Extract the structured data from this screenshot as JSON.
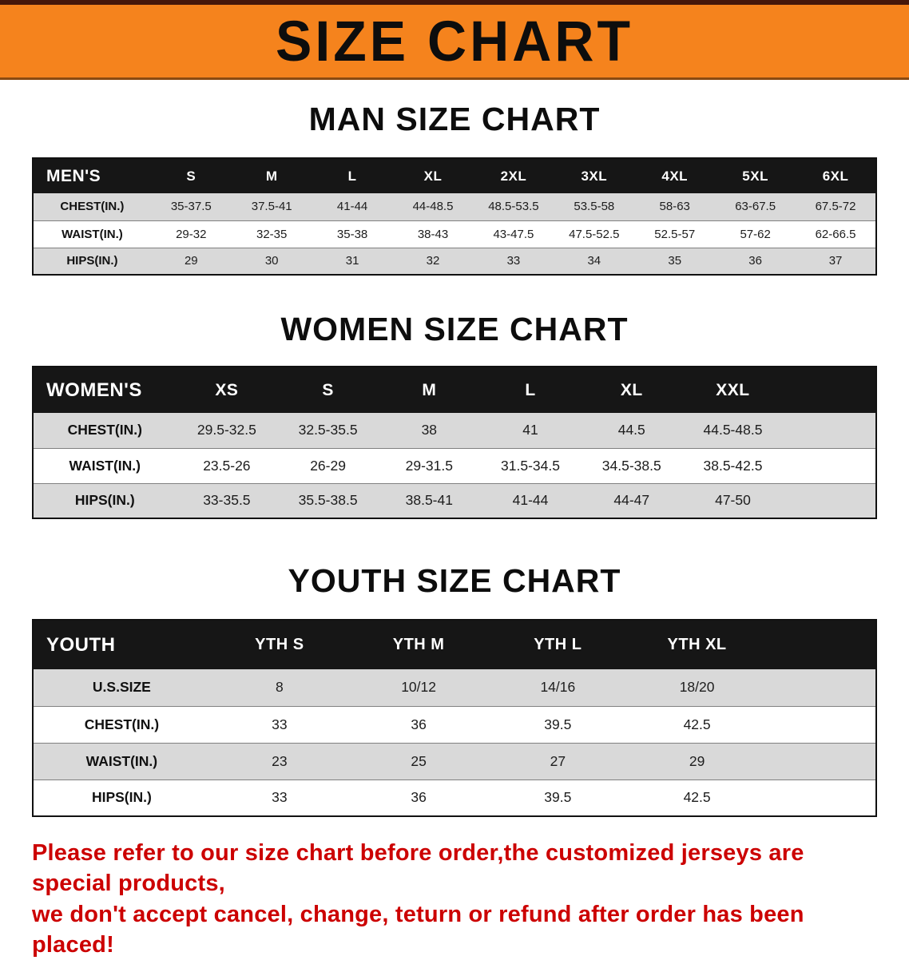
{
  "banner": {
    "title": "SIZE CHART",
    "bg": "#f5831d"
  },
  "sections": [
    {
      "heading": "MAN SIZE CHART",
      "table": {
        "corner": "MEN'S",
        "columns": [
          "S",
          "M",
          "L",
          "XL",
          "2XL",
          "3XL",
          "4XL",
          "5XL",
          "6XL"
        ],
        "rows": [
          {
            "label": "CHEST(IN.)",
            "values": [
              "35-37.5",
              "37.5-41",
              "41-44",
              "44-48.5",
              "48.5-53.5",
              "53.5-58",
              "58-63",
              "63-67.5",
              "67.5-72"
            ]
          },
          {
            "label": "WAIST(IN.)",
            "values": [
              "29-32",
              "32-35",
              "35-38",
              "38-43",
              "43-47.5",
              "47.5-52.5",
              "52.5-57",
              "57-62",
              "62-66.5"
            ]
          },
          {
            "label": "HIPS(IN.)",
            "values": [
              "29",
              "30",
              "31",
              "32",
              "33",
              "34",
              "35",
              "36",
              "37"
            ]
          }
        ]
      }
    },
    {
      "heading": "WOMEN SIZE CHART",
      "table": {
        "corner": "WOMEN'S",
        "columns": [
          "XS",
          "S",
          "M",
          "L",
          "XL",
          "XXL"
        ],
        "rows": [
          {
            "label": "CHEST(IN.)",
            "values": [
              "29.5-32.5",
              "32.5-35.5",
              "38",
              "41",
              "44.5",
              "44.5-48.5"
            ]
          },
          {
            "label": "WAIST(IN.)",
            "values": [
              "23.5-26",
              "26-29",
              "29-31.5",
              "31.5-34.5",
              "34.5-38.5",
              "38.5-42.5"
            ]
          },
          {
            "label": "HIPS(IN.)",
            "values": [
              "33-35.5",
              "35.5-38.5",
              "38.5-41",
              "41-44",
              "44-47",
              "47-50"
            ]
          }
        ]
      }
    },
    {
      "heading": "YOUTH SIZE CHART",
      "table": {
        "corner": "YOUTH",
        "columns": [
          "YTH S",
          "YTH M",
          "YTH L",
          "YTH XL"
        ],
        "rows": [
          {
            "label": "U.S.SIZE",
            "values": [
              "8",
              "10/12",
              "14/16",
              "18/20"
            ]
          },
          {
            "label": "CHEST(IN.)",
            "values": [
              "33",
              "36",
              "39.5",
              "42.5"
            ]
          },
          {
            "label": "WAIST(IN.)",
            "values": [
              "23",
              "25",
              "27",
              "29"
            ]
          },
          {
            "label": "HIPS(IN.)",
            "values": [
              "33",
              "36",
              "39.5",
              "42.5"
            ]
          }
        ]
      }
    }
  ],
  "footer": {
    "line1": "Please refer to our size chart before order,the customized jerseys are special products,",
    "line2": "we don't accept cancel, change, teturn or refund after order has been placed!",
    "color": "#cc0000"
  }
}
